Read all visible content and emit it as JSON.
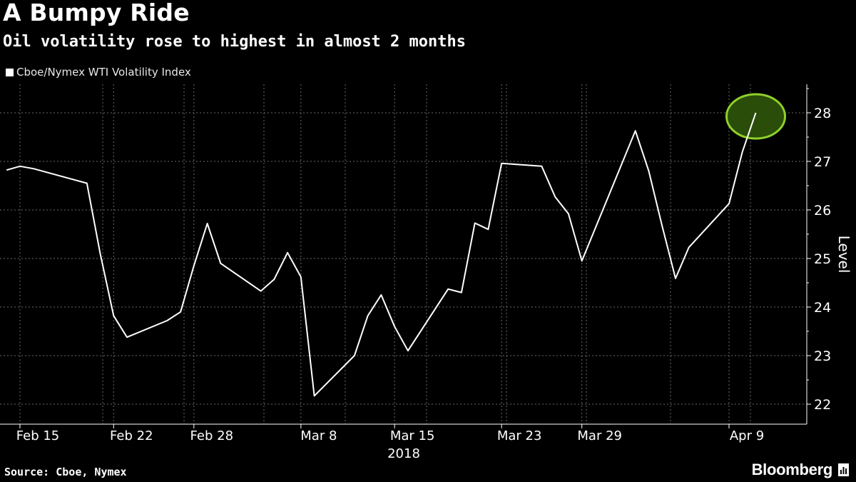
{
  "header": {
    "title": "A Bumpy Ride",
    "subtitle": "Oil volatility rose to highest in almost 2 months"
  },
  "footer": {
    "source": "Source: Cboe, Nymex",
    "brand": "Bloomberg"
  },
  "colors": {
    "background": "#000000",
    "line": "#ffffff",
    "highlight_fill": "#2a4d0a",
    "highlight_stroke": "#8fd12a",
    "grid": "#6a6a6a"
  },
  "chart_data": {
    "type": "line",
    "ylabel": "Level",
    "xlabel": "2018",
    "ylim": [
      21.6,
      28.6
    ],
    "yticks": [
      22,
      23,
      24,
      25,
      26,
      27,
      28
    ],
    "grid": true,
    "legend_position": "top-left",
    "x_tick_labels": [
      "Feb 15",
      "Feb 22",
      "Feb 28",
      "Mar 8",
      "Mar 15",
      "Mar 23",
      "Mar 29",
      "Apr 9"
    ],
    "x_tick_dates": [
      "2018-02-15",
      "2018-02-22",
      "2018-02-28",
      "2018-03-08",
      "2018-03-15",
      "2018-03-23",
      "2018-03-29",
      "2018-04-09"
    ],
    "series": [
      {
        "name": "Cboe/Nymex WTI Volatility Index",
        "x": [
          "2018-02-14",
          "2018-02-15",
          "2018-02-16",
          "2018-02-20",
          "2018-02-21",
          "2018-02-22",
          "2018-02-23",
          "2018-02-26",
          "2018-02-27",
          "2018-02-28",
          "2018-03-01",
          "2018-03-02",
          "2018-03-05",
          "2018-03-06",
          "2018-03-07",
          "2018-03-08",
          "2018-03-09",
          "2018-03-12",
          "2018-03-13",
          "2018-03-14",
          "2018-03-15",
          "2018-03-16",
          "2018-03-19",
          "2018-03-20",
          "2018-03-21",
          "2018-03-22",
          "2018-03-23",
          "2018-03-26",
          "2018-03-27",
          "2018-03-28",
          "2018-03-29",
          "2018-04-02",
          "2018-04-03",
          "2018-04-04",
          "2018-04-05",
          "2018-04-06",
          "2018-04-09",
          "2018-04-10",
          "2018-04-11"
        ],
        "values": [
          26.82,
          26.9,
          26.85,
          26.55,
          25.1,
          23.82,
          23.38,
          23.72,
          23.9,
          24.85,
          25.72,
          24.9,
          24.33,
          24.57,
          25.12,
          24.62,
          22.17,
          23.0,
          23.82,
          24.25,
          23.6,
          23.1,
          24.37,
          24.3,
          25.73,
          25.6,
          26.96,
          26.9,
          26.27,
          25.92,
          24.95,
          27.63,
          26.8,
          25.67,
          24.59,
          25.23,
          26.13,
          27.2,
          28.0
        ]
      }
    ],
    "highlight": {
      "shape": "circle",
      "date": "2018-04-11",
      "value": 28.0
    }
  }
}
